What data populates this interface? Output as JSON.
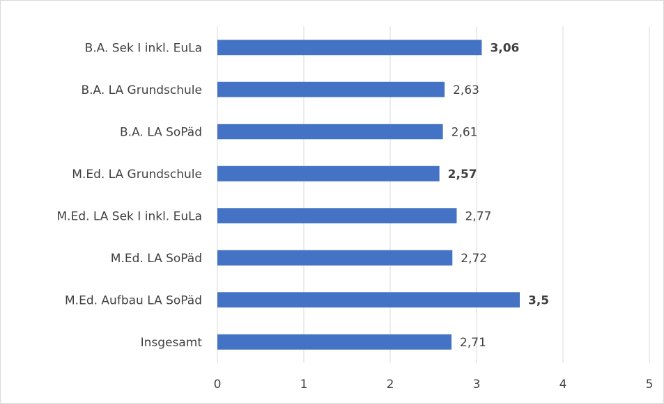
{
  "chart_data": {
    "type": "hbar",
    "categories": [
      "B.A. Sek I inkl. EuLa",
      "B.A. LA Grundschule",
      "B.A. LA SoPäd",
      "M.Ed. LA Grundschule",
      "M.Ed. LA Sek I inkl. EuLa",
      "M.Ed. LA SoPäd",
      "M.Ed. Aufbau LA SoPäd",
      "Insgesamt"
    ],
    "values": [
      3.06,
      2.63,
      2.61,
      2.57,
      2.77,
      2.72,
      3.5,
      2.71
    ],
    "value_labels": [
      "3,06",
      "2,63",
      "2,61",
      "2,57",
      "2,77",
      "2,72",
      "3,5",
      "2,71"
    ],
    "value_label_colors": [
      "#00b050",
      "#404040",
      "#404040",
      "#ff0000",
      "#404040",
      "#404040",
      "#00b050",
      "#404040"
    ],
    "value_label_bold": [
      true,
      false,
      false,
      true,
      false,
      false,
      true,
      false
    ],
    "color": "#4472c4",
    "xlim": [
      0,
      5
    ],
    "xticks": [
      0,
      1,
      2,
      3,
      4,
      5
    ],
    "grid": true
  }
}
